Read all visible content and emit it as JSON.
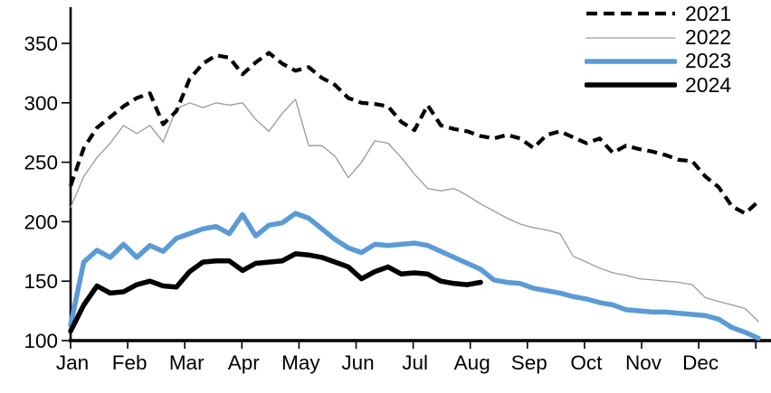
{
  "chart_data": {
    "type": "line",
    "title": "",
    "x_unit": "weekly",
    "x_axis": {
      "tick_labels": [
        "Jan",
        "Feb",
        "Mar",
        "Apr",
        "May",
        "Jun",
        "Jul",
        "Aug",
        "Sep",
        "Oct",
        "Nov",
        "Dec"
      ]
    },
    "y_axis": {
      "tick_values": [
        100,
        150,
        200,
        250,
        300,
        350
      ],
      "range": [
        100,
        360
      ],
      "grid": false
    },
    "legend": {
      "position": "top-right",
      "entries": [
        "2021",
        "2022",
        "2023",
        "2024"
      ]
    },
    "colors": {
      "axis": "#000000",
      "series_2021": "#000000",
      "series_2022": "#9a9a9a",
      "series_2023": "#5b9bd5",
      "series_2024": "#000000"
    },
    "series": [
      {
        "name": "2021",
        "color": "#000000",
        "style": "dashed",
        "width": 4.2,
        "values": [
          230,
          262,
          279,
          288,
          297,
          304,
          308,
          282,
          293,
          320,
          333,
          340,
          338,
          324,
          334,
          342,
          333,
          327,
          330,
          321,
          315,
          304,
          300,
          299,
          297,
          284,
          277,
          298,
          281,
          278,
          276,
          272,
          270,
          273,
          270,
          262,
          273,
          276,
          271,
          266,
          270,
          258,
          264,
          261,
          259,
          256,
          252,
          251,
          238,
          229,
          213,
          207,
          217
        ]
      },
      {
        "name": "2022",
        "color": "#9a9a9a",
        "style": "solid",
        "width": 1.3,
        "values": [
          212,
          238,
          254,
          266,
          281,
          274,
          281,
          267,
          295,
          300,
          296,
          300,
          298,
          300,
          286,
          276,
          291,
          303,
          264,
          264,
          255,
          237,
          250,
          268,
          266,
          254,
          240,
          228,
          226,
          228,
          222,
          215,
          209,
          203,
          198,
          195,
          193,
          190,
          171,
          166,
          161,
          157,
          155,
          152,
          151,
          150,
          149,
          147,
          136,
          133,
          130,
          127,
          116
        ]
      },
      {
        "name": "2023",
        "color": "#5b9bd5",
        "style": "solid",
        "width": 5.5,
        "values": [
          113,
          166,
          176,
          170,
          181,
          170,
          180,
          175,
          186,
          190,
          194,
          196,
          190,
          206,
          188,
          197,
          199,
          207,
          203,
          194,
          185,
          178,
          174,
          181,
          180,
          181,
          182,
          180,
          175,
          170,
          165,
          160,
          151,
          149,
          148,
          144,
          142,
          140,
          137,
          135,
          132,
          130,
          126,
          125,
          124,
          124,
          123,
          122,
          121,
          118,
          111,
          107,
          102
        ]
      },
      {
        "name": "2024",
        "color": "#000000",
        "style": "solid",
        "width": 5.5,
        "values": [
          108,
          130,
          146,
          140,
          141,
          147,
          150,
          146,
          145,
          158,
          166,
          167,
          167,
          159,
          165,
          166,
          167,
          173,
          172,
          170,
          166,
          162,
          152,
          158,
          162,
          156,
          157,
          156,
          150,
          148,
          147,
          149
        ]
      }
    ]
  }
}
